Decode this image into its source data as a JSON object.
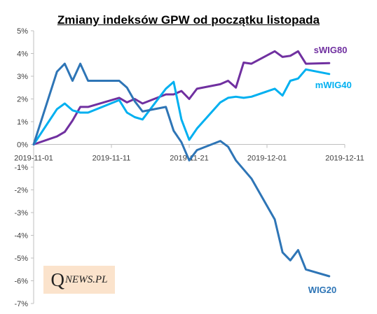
{
  "chart_data": {
    "type": "line",
    "title": "Zmiany indeksów GPW od początku listopada",
    "xlabel": "",
    "ylabel": "",
    "x_ticks": [
      "2019-11-01",
      "2019-11-11",
      "2019-11-21",
      "2019-12-01",
      "2019-12-11"
    ],
    "y_ticks": [
      "5%",
      "4%",
      "3%",
      "2%",
      "1%",
      "0%",
      "-1%",
      "-2%",
      "-3%",
      "-4%",
      "-5%",
      "-6%",
      "-7%"
    ],
    "ylim": [
      -7,
      5
    ],
    "xlim": [
      "2019-11-01",
      "2019-12-11"
    ],
    "grid": false,
    "legend": "inline labels at line ends",
    "x": [
      "2019-11-01",
      "2019-11-04",
      "2019-11-05",
      "2019-11-06",
      "2019-11-07",
      "2019-11-08",
      "2019-11-12",
      "2019-11-13",
      "2019-11-14",
      "2019-11-15",
      "2019-11-18",
      "2019-11-19",
      "2019-11-20",
      "2019-11-21",
      "2019-11-22",
      "2019-11-25",
      "2019-11-26",
      "2019-11-27",
      "2019-11-28",
      "2019-11-29",
      "2019-12-02",
      "2019-12-03",
      "2019-12-04",
      "2019-12-05",
      "2019-12-06",
      "2019-12-09"
    ],
    "series": [
      {
        "name": "sWIG80",
        "color": "#7030a0",
        "values": [
          0.0,
          0.35,
          0.55,
          1.05,
          1.65,
          1.65,
          2.05,
          1.85,
          2.0,
          1.8,
          2.2,
          2.2,
          2.35,
          2.0,
          2.45,
          2.65,
          2.8,
          2.5,
          3.6,
          3.55,
          4.1,
          3.85,
          3.9,
          4.1,
          3.55,
          3.58
        ]
      },
      {
        "name": "mWIG40",
        "color": "#00b0f0",
        "values": [
          0.0,
          1.55,
          1.8,
          1.5,
          1.4,
          1.4,
          1.95,
          1.4,
          1.2,
          1.1,
          2.45,
          2.75,
          1.1,
          0.2,
          0.7,
          1.85,
          2.05,
          2.1,
          2.05,
          2.1,
          2.45,
          2.15,
          2.8,
          2.9,
          3.3,
          3.1
        ]
      },
      {
        "name": "WIG20",
        "color": "#2e75b6",
        "values": [
          0.0,
          3.2,
          3.55,
          2.8,
          3.55,
          2.8,
          2.8,
          2.5,
          1.9,
          1.45,
          1.65,
          0.6,
          0.1,
          -0.7,
          -0.25,
          0.15,
          -0.1,
          -0.7,
          -1.1,
          -1.5,
          -3.3,
          -4.75,
          -5.1,
          -4.65,
          -5.5,
          -5.8
        ]
      }
    ]
  },
  "logo": {
    "q": "Q",
    "rest": "NEWS.PL"
  }
}
